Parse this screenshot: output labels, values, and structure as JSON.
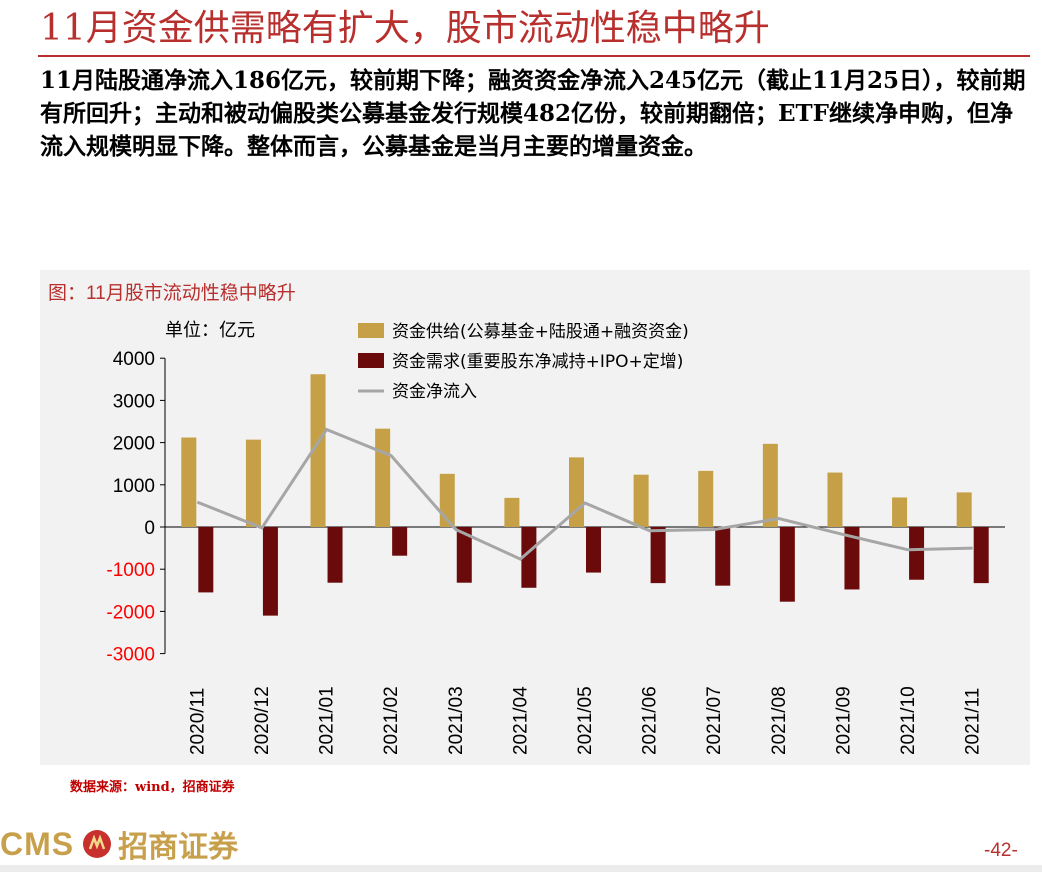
{
  "title": "11月资金供需略有扩大，股市流动性稳中略升",
  "body_text": "11月陆股通净流入186亿元，较前期下降；融资资金净流入245亿元（截止11月25日），较前期有所回升；主动和被动偏股类公募基金发行规模482亿份，较前期翻倍；ETF继续净申购，但净流入规模明显下降。整体而言，公募基金是当月主要的增量资金。",
  "chart_caption": "图：11月股市流动性稳中略升",
  "source": "数据来源：wind，招商证券",
  "logo": {
    "text": "CMS",
    "cn": "招商证券"
  },
  "page_number": "-42-",
  "colors": {
    "accent": "#b8302e",
    "supply": "#c5a046",
    "demand": "#6b0a0a",
    "net": "#a6a6a6",
    "negative_tick": "#ff0000"
  },
  "chart_data": {
    "type": "bar",
    "title": "11月股市流动性稳中略升",
    "unit_label": "单位：亿元",
    "categories": [
      "2020/11",
      "2020/12",
      "2021/01",
      "2021/02",
      "2021/03",
      "2021/04",
      "2021/05",
      "2021/06",
      "2021/07",
      "2021/08",
      "2021/09",
      "2021/10",
      "2021/11"
    ],
    "series": [
      {
        "name": "资金供给(公募基金+陆股通+融资资金)",
        "kind": "bar",
        "values": [
          2120,
          2070,
          3620,
          2330,
          1260,
          690,
          1650,
          1240,
          1330,
          1970,
          1290,
          700,
          820
        ]
      },
      {
        "name": "资金需求(重要股东净减持+IPO+定增)",
        "kind": "bar",
        "values": [
          -1550,
          -2100,
          -1320,
          -680,
          -1320,
          -1440,
          -1080,
          -1330,
          -1390,
          -1770,
          -1480,
          -1250,
          -1330
        ]
      },
      {
        "name": "资金净流入",
        "kind": "line",
        "values": [
          590,
          -20,
          2310,
          1690,
          -60,
          -760,
          570,
          -90,
          -60,
          200,
          -180,
          -540,
          -500
        ]
      }
    ],
    "yticks": [
      4000,
      3000,
      2000,
      1000,
      0,
      -1000,
      -2000,
      -3000
    ],
    "ylim": [
      -3000,
      4000
    ],
    "legend_position": "top-center"
  }
}
